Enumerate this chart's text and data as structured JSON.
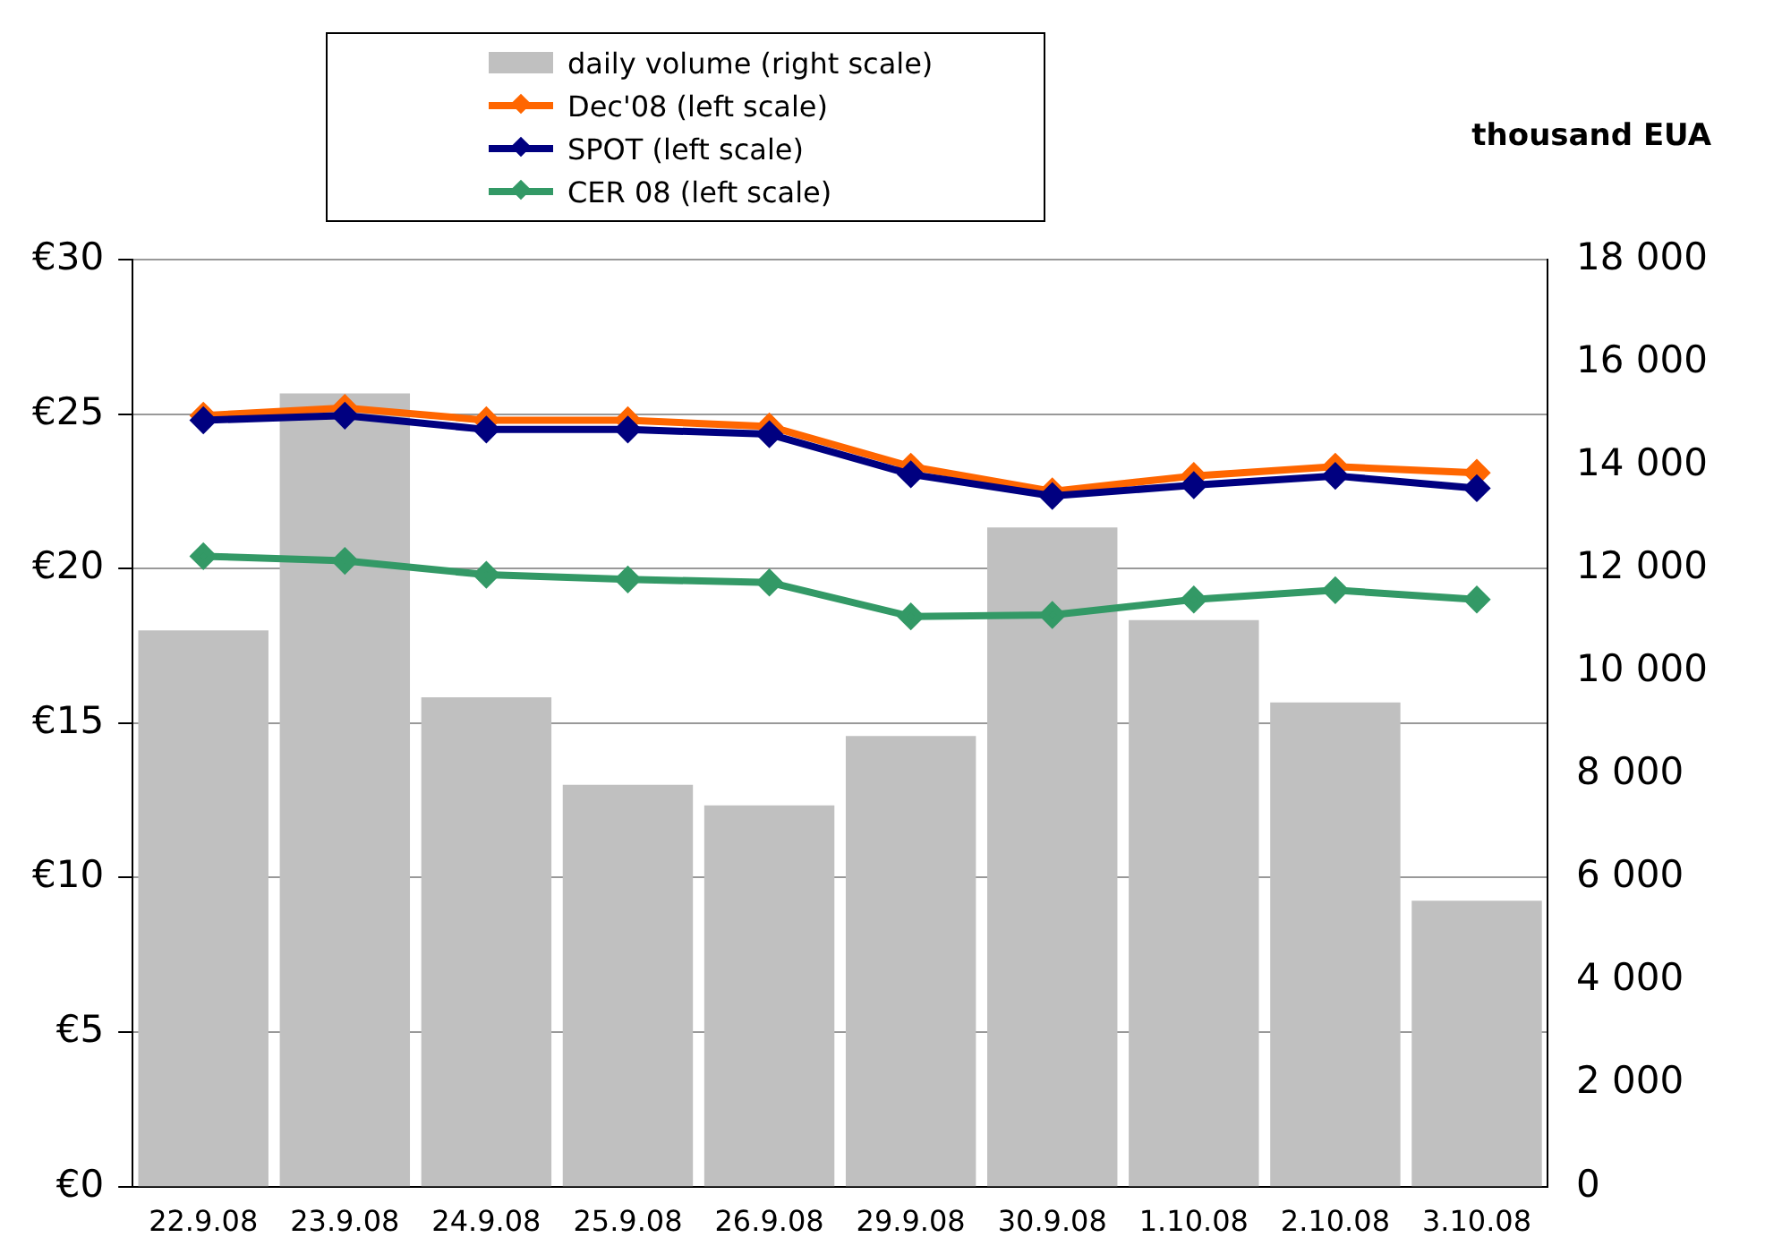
{
  "chart_data": {
    "type": "bar",
    "y2label": "thousand EUA",
    "categories": [
      "22.9.08",
      "23.9.08",
      "24.9.08",
      "25.9.08",
      "26.9.08",
      "29.9.08",
      "30.9.08",
      "1.10.08",
      "2.10.08",
      "3.10.08"
    ],
    "series": [
      {
        "name": "daily volume (right scale)",
        "axis": "y2",
        "color": "#c0c0c0",
        "values": [
          10800,
          15400,
          9500,
          7800,
          7400,
          8750,
          12800,
          11000,
          9400,
          5550
        ]
      },
      {
        "name": "Dec'08 (left scale)",
        "type": "line",
        "color": "#ff6600",
        "values": [
          24.95,
          25.2,
          24.8,
          24.8,
          24.6,
          23.3,
          22.5,
          23.0,
          23.3,
          23.1
        ]
      },
      {
        "name": "SPOT (left scale)",
        "type": "line",
        "color": "#000080",
        "values": [
          24.8,
          24.95,
          24.5,
          24.5,
          24.35,
          23.05,
          22.35,
          22.7,
          23.0,
          22.6
        ]
      },
      {
        "name": "CER 08 (left scale)",
        "type": "line",
        "color": "#339966",
        "values": [
          20.4,
          20.25,
          19.8,
          19.65,
          19.55,
          18.45,
          18.5,
          19.0,
          19.3,
          19.0
        ]
      }
    ],
    "ylim": [
      0,
      30
    ],
    "yticks": [
      {
        "value": 0,
        "label": "€0"
      },
      {
        "value": 5,
        "label": "€5"
      },
      {
        "value": 10,
        "label": "€10"
      },
      {
        "value": 15,
        "label": "€15"
      },
      {
        "value": 20,
        "label": "€20"
      },
      {
        "value": 25,
        "label": "€25"
      },
      {
        "value": 30,
        "label": "€30"
      }
    ],
    "y2lim": [
      0,
      18000
    ],
    "y2ticks": [
      {
        "value": 0,
        "label": "0"
      },
      {
        "value": 2000,
        "label": "2 000"
      },
      {
        "value": 4000,
        "label": "4 000"
      },
      {
        "value": 6000,
        "label": "6 000"
      },
      {
        "value": 8000,
        "label": "8 000"
      },
      {
        "value": 10000,
        "label": "10 000"
      },
      {
        "value": 12000,
        "label": "12 000"
      },
      {
        "value": 14000,
        "label": "14 000"
      },
      {
        "value": 16000,
        "label": "16 000"
      },
      {
        "value": 18000,
        "label": "18 000"
      }
    ],
    "grid": "y",
    "legend": "top",
    "marker": "diamond",
    "line_style": "solid"
  }
}
